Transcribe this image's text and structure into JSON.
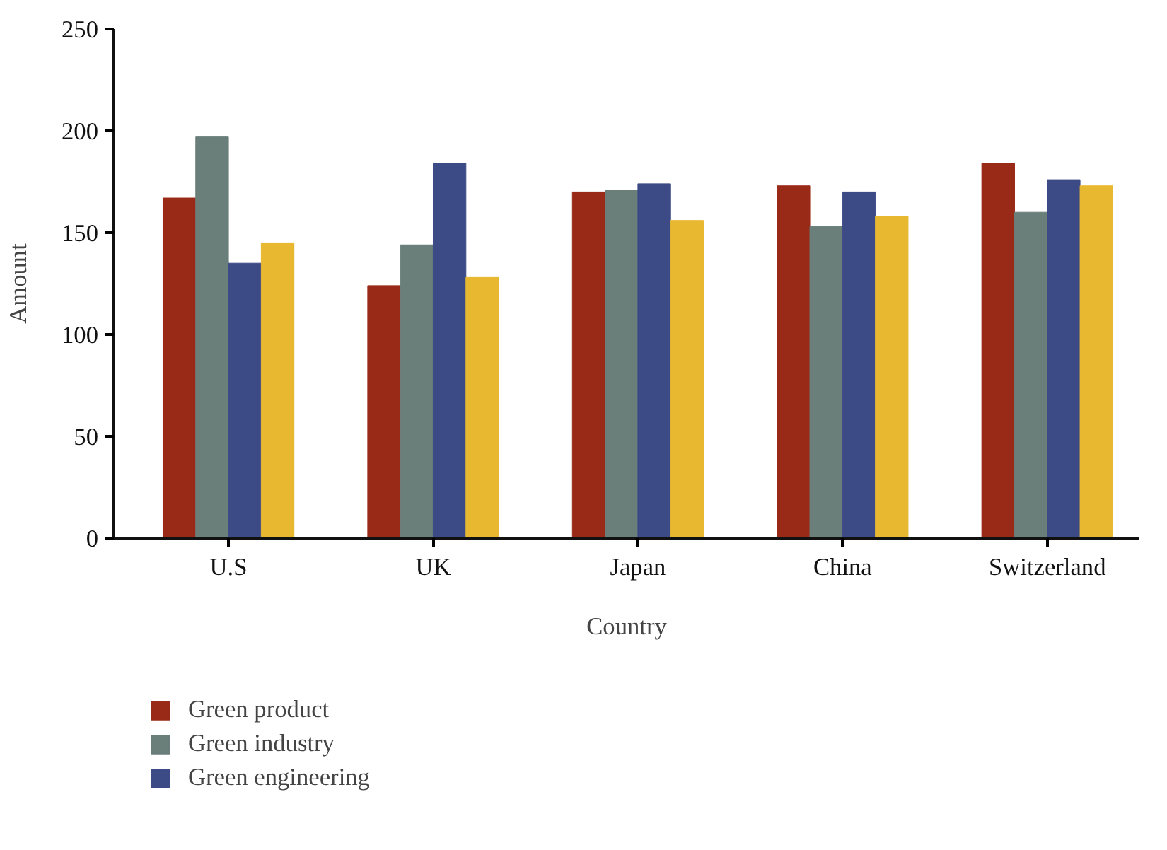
{
  "chart_data": {
    "type": "bar",
    "xlabel": "Country",
    "ylabel": "Amount",
    "categories": [
      "U.S",
      "UK",
      "Japan",
      "China",
      "Switzerland"
    ],
    "ylim": [
      0,
      250
    ],
    "yticks": [
      0,
      50,
      100,
      150,
      200,
      250
    ],
    "grid": false,
    "legend": "bottom left",
    "series": [
      {
        "name": "Green product",
        "color": "#9a2a18",
        "values": [
          167,
          124,
          170,
          173,
          184
        ]
      },
      {
        "name": "Green industry",
        "color": "#6a7e7a",
        "values": [
          197,
          144,
          171,
          153,
          160
        ]
      },
      {
        "name": "Green engineering",
        "color": "#3c4a86",
        "values": [
          135,
          184,
          174,
          170,
          176
        ]
      },
      {
        "color": "#e8b830",
        "values": [
          145,
          128,
          156,
          158,
          173
        ]
      }
    ]
  }
}
